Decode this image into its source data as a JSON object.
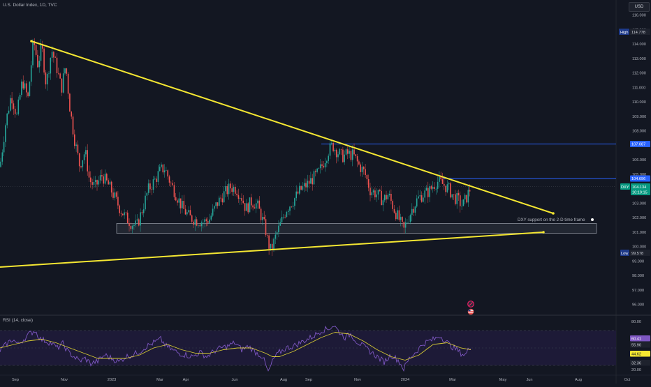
{
  "header": {
    "title": "U.S. Dollar Index, 1D, TVC",
    "currency": "USD"
  },
  "colors": {
    "background": "#131722",
    "up_candle": "#26a69a",
    "down_candle": "#ef5350",
    "trendline": "#f5e732",
    "level_line": "#2962ff",
    "rsi_line": "#7e57c2",
    "rsi_ma": "#f5e732",
    "rsi_band": "#1f1b3a"
  },
  "annotation": {
    "support_text": "DXY support on the 2-D time frame"
  },
  "tags": {
    "high_label": "High",
    "high_value": "114.778",
    "low_label": "Low",
    "low_value": "99.578",
    "level_1": "107.087",
    "level_2": "104.696",
    "symbol": "DXY",
    "last_price": "104.134",
    "countdown": "10:19:15"
  },
  "rsi_panel": {
    "title": "RSI (14, close)",
    "axis_ticks": [
      "80.00",
      "20.00"
    ],
    "value_tags": [
      "60.41",
      "55.90",
      "44.62",
      "32.36"
    ],
    "hidden_tag": "40.00"
  },
  "icons": [
    "pokeball-icon",
    "flag-icon"
  ],
  "chart_data": {
    "type": "candlestick",
    "price_axis_ticks": [
      "116.000",
      "115.000",
      "114.000",
      "113.000",
      "112.000",
      "111.000",
      "110.000",
      "109.000",
      "108.000",
      "107.000",
      "106.000",
      "105.000",
      "104.000",
      "103.000",
      "102.000",
      "101.000",
      "100.000",
      "99.000",
      "98.000",
      "97.000",
      "96.000"
    ],
    "time_axis_labels": [
      "Sep",
      "Nov",
      "2023",
      "Mar",
      "Apr",
      "Jun",
      "Aug",
      "Sep",
      "Nov",
      "2024",
      "Mar",
      "May",
      "Jun",
      "Aug",
      "Oct"
    ],
    "ylim": [
      95.3,
      116.6
    ],
    "high": 114.778,
    "low": 99.578,
    "horizontal_levels": [
      107.087,
      104.696
    ],
    "last_price": 104.134,
    "series": [
      {
        "values": [
          [
            0,
            105.5
          ],
          [
            8,
            108.5
          ],
          [
            16,
            110.5
          ],
          [
            24,
            109.0
          ],
          [
            32,
            111.5
          ],
          [
            40,
            110.2
          ],
          [
            48,
            114.3
          ],
          [
            54,
            112.6
          ],
          [
            60,
            113.8
          ],
          [
            66,
            111.2
          ],
          [
            74,
            113.6
          ],
          [
            82,
            112.2
          ],
          [
            88,
            110.9
          ],
          [
            94,
            112.6
          ],
          [
            100,
            109.6
          ],
          [
            106,
            107.6
          ],
          [
            114,
            105.6
          ],
          [
            122,
            106.6
          ],
          [
            128,
            104.6
          ],
          [
            136,
            104.1
          ],
          [
            146,
            104.9
          ],
          [
            156,
            104.2
          ],
          [
            164,
            103.4
          ],
          [
            172,
            102.6
          ],
          [
            180,
            102.0
          ],
          [
            188,
            101.6
          ],
          [
            196,
            101.4
          ],
          [
            204,
            102.6
          ],
          [
            212,
            103.9
          ],
          [
            222,
            104.6
          ],
          [
            230,
            105.3
          ],
          [
            236,
            105.4
          ],
          [
            244,
            104.4
          ],
          [
            252,
            103.6
          ],
          [
            262,
            102.6
          ],
          [
            272,
            102.0
          ],
          [
            282,
            101.8
          ],
          [
            292,
            101.7
          ],
          [
            300,
            101.9
          ],
          [
            310,
            102.9
          ],
          [
            320,
            103.6
          ],
          [
            330,
            104.1
          ],
          [
            338,
            104.0
          ],
          [
            346,
            103.4
          ],
          [
            352,
            102.6
          ],
          [
            360,
            103.1
          ],
          [
            368,
            102.9
          ],
          [
            374,
            102.1
          ],
          [
            380,
            101.2
          ],
          [
            384,
            100.2
          ],
          [
            388,
            99.7
          ],
          [
            394,
            100.6
          ],
          [
            402,
            101.6
          ],
          [
            410,
            102.6
          ],
          [
            420,
            103.2
          ],
          [
            430,
            103.9
          ],
          [
            440,
            104.3
          ],
          [
            448,
            104.7
          ],
          [
            456,
            105.1
          ],
          [
            464,
            105.9
          ],
          [
            470,
            106.6
          ],
          [
            476,
            107.0
          ],
          [
            482,
            106.6
          ],
          [
            490,
            106.2
          ],
          [
            498,
            106.4
          ],
          [
            506,
            106.3
          ],
          [
            514,
            105.6
          ],
          [
            522,
            105.1
          ],
          [
            530,
            103.9
          ],
          [
            540,
            103.6
          ],
          [
            548,
            103.2
          ],
          [
            556,
            103.6
          ],
          [
            564,
            102.6
          ],
          [
            572,
            101.8
          ],
          [
            578,
            101.1
          ],
          [
            582,
            101.7
          ],
          [
            590,
            102.6
          ],
          [
            598,
            103.3
          ],
          [
            606,
            103.6
          ],
          [
            614,
            103.8
          ],
          [
            620,
            104.2
          ],
          [
            626,
            104.5
          ],
          [
            634,
            104.3
          ],
          [
            642,
            104.0
          ],
          [
            650,
            103.4
          ],
          [
            656,
            103.2
          ],
          [
            662,
            102.8
          ],
          [
            668,
            103.4
          ],
          [
            674,
            104.1
          ]
        ]
      }
    ],
    "rsi_range": [
      0,
      100
    ],
    "rsi_levels": [
      70,
      50,
      30
    ],
    "rsi_series": [
      [
        0,
        47
      ],
      [
        10,
        55
      ],
      [
        18,
        60
      ],
      [
        26,
        54
      ],
      [
        34,
        60
      ],
      [
        42,
        66
      ],
      [
        50,
        70
      ],
      [
        58,
        60
      ],
      [
        66,
        58
      ],
      [
        74,
        55
      ],
      [
        82,
        50
      ],
      [
        90,
        55
      ],
      [
        98,
        45
      ],
      [
        106,
        40
      ],
      [
        114,
        35
      ],
      [
        122,
        38
      ],
      [
        130,
        32
      ],
      [
        140,
        35
      ],
      [
        150,
        42
      ],
      [
        160,
        38
      ],
      [
        170,
        34
      ],
      [
        180,
        40
      ],
      [
        190,
        42
      ],
      [
        200,
        46
      ],
      [
        210,
        52
      ],
      [
        220,
        56
      ],
      [
        230,
        60
      ],
      [
        238,
        52
      ],
      [
        246,
        48
      ],
      [
        256,
        44
      ],
      [
        266,
        42
      ],
      [
        276,
        40
      ],
      [
        286,
        45
      ],
      [
        296,
        40
      ],
      [
        306,
        46
      ],
      [
        316,
        50
      ],
      [
        326,
        52
      ],
      [
        336,
        56
      ],
      [
        346,
        48
      ],
      [
        356,
        52
      ],
      [
        366,
        45
      ],
      [
        376,
        40
      ],
      [
        384,
        22
      ],
      [
        392,
        38
      ],
      [
        400,
        45
      ],
      [
        410,
        50
      ],
      [
        420,
        52
      ],
      [
        430,
        56
      ],
      [
        440,
        60
      ],
      [
        450,
        64
      ],
      [
        460,
        70
      ],
      [
        470,
        72
      ],
      [
        478,
        76
      ],
      [
        486,
        68
      ],
      [
        494,
        62
      ],
      [
        502,
        66
      ],
      [
        510,
        58
      ],
      [
        520,
        52
      ],
      [
        530,
        46
      ],
      [
        540,
        40
      ],
      [
        550,
        34
      ],
      [
        560,
        42
      ],
      [
        570,
        36
      ],
      [
        578,
        26
      ],
      [
        586,
        38
      ],
      [
        596,
        46
      ],
      [
        606,
        55
      ],
      [
        614,
        58
      ],
      [
        622,
        60
      ],
      [
        630,
        64
      ],
      [
        638,
        58
      ],
      [
        646,
        52
      ],
      [
        654,
        48
      ],
      [
        660,
        44
      ],
      [
        666,
        42
      ],
      [
        674,
        52
      ]
    ],
    "rsi_ma_series": [
      [
        0,
        50
      ],
      [
        20,
        54
      ],
      [
        40,
        58
      ],
      [
        60,
        60
      ],
      [
        80,
        56
      ],
      [
        100,
        50
      ],
      [
        120,
        44
      ],
      [
        140,
        38
      ],
      [
        160,
        38
      ],
      [
        180,
        38
      ],
      [
        200,
        42
      ],
      [
        220,
        50
      ],
      [
        240,
        54
      ],
      [
        260,
        48
      ],
      [
        280,
        44
      ],
      [
        300,
        44
      ],
      [
        320,
        48
      ],
      [
        340,
        50
      ],
      [
        360,
        50
      ],
      [
        380,
        44
      ],
      [
        390,
        40
      ],
      [
        400,
        40
      ],
      [
        420,
        46
      ],
      [
        440,
        54
      ],
      [
        460,
        62
      ],
      [
        480,
        68
      ],
      [
        500,
        66
      ],
      [
        520,
        58
      ],
      [
        540,
        48
      ],
      [
        560,
        40
      ],
      [
        580,
        36
      ],
      [
        600,
        42
      ],
      [
        620,
        54
      ],
      [
        640,
        56
      ],
      [
        660,
        50
      ],
      [
        674,
        48
      ]
    ]
  }
}
